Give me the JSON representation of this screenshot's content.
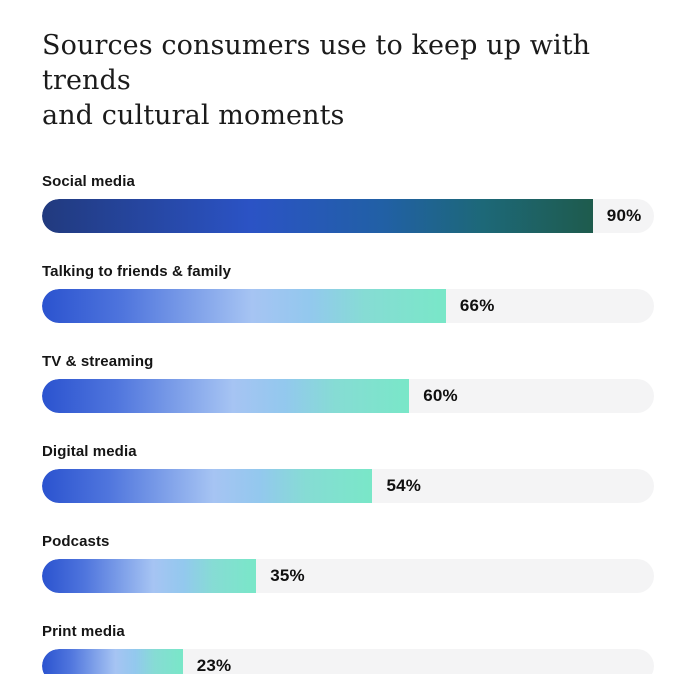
{
  "title": {
    "line1": "Sources consumers use to keep up with trends",
    "line2": "and cultural moments"
  },
  "chart_data": {
    "type": "bar",
    "orientation": "horizontal",
    "title": "Sources consumers use to keep up with trends and cultural moments",
    "categories": [
      "Social media",
      "Talking to friends & family",
      "TV & streaming",
      "Digital media",
      "Podcasts",
      "Print media"
    ],
    "values": [
      90,
      66,
      60,
      54,
      35,
      23
    ],
    "value_suffix": "%",
    "xlim": [
      0,
      100
    ],
    "grid": false,
    "legend": false,
    "colors": {
      "background": "#ffffff",
      "track": "#f4f4f5",
      "label_text": "#151515",
      "value_text": "#101010",
      "title_text": "#1b1b1b",
      "first_bar_gradient": [
        "#213a7e 0%",
        "#2b53c5 38%",
        "#2160a5 62%",
        "#1d6878 80%",
        "#1e5b4d 100%"
      ],
      "bar_gradient": [
        "#2b53cf 0%",
        "#4f75dd 20%",
        "#a6c4f3 52%",
        "#93c8ee 66%",
        "#86dcd4 80%",
        "#79e7c8 100%"
      ]
    }
  }
}
